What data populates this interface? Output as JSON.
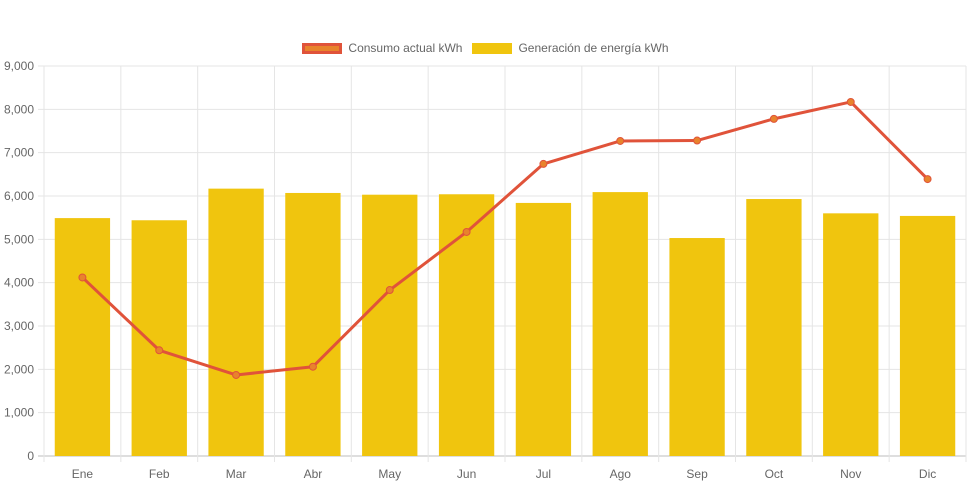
{
  "chart_data": {
    "type": "bar",
    "title": "",
    "xlabel": "",
    "ylabel": "",
    "categories": [
      "Ene",
      "Feb",
      "Mar",
      "Abr",
      "May",
      "Jun",
      "Jul",
      "Ago",
      "Sep",
      "Oct",
      "Nov",
      "Dic"
    ],
    "ylim": [
      0,
      9000
    ],
    "yticks": [
      "0",
      "1,000",
      "2,000",
      "3,000",
      "4,000",
      "5,000",
      "6,000",
      "7,000",
      "8,000",
      "9,000"
    ],
    "grid": true,
    "legend_position": "top",
    "series": [
      {
        "name": "Consumo actual kWh",
        "type": "line",
        "color": "#e0533a",
        "point_color": "#e8832c",
        "values": [
          4120,
          2440,
          1870,
          2060,
          3830,
          5170,
          6740,
          7270,
          7280,
          7780,
          8170,
          6390
        ]
      },
      {
        "name": "Generación de energía kWh",
        "type": "bar",
        "color": "#f0c50e",
        "values": [
          5490,
          5440,
          6170,
          6070,
          6030,
          6040,
          5840,
          6090,
          5030,
          5930,
          5600,
          5540
        ]
      }
    ]
  }
}
